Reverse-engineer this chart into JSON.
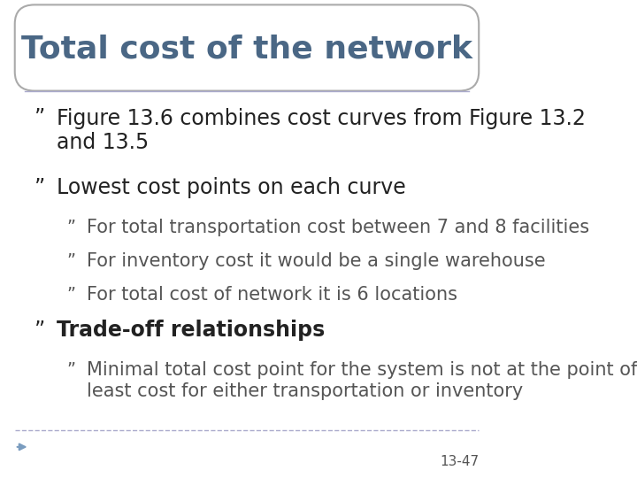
{
  "title": "Total cost of the network",
  "title_color": "#4a6785",
  "title_fontsize": 26,
  "bg_color": "#ffffff",
  "bullet_char": "”",
  "slide_number": "13-47",
  "items": [
    {
      "level": 1,
      "text": "Figure 13.6 combines cost curves from Figure 13.2\nand 13.5",
      "bold": false,
      "fontsize": 17
    },
    {
      "level": 1,
      "text": "Lowest cost points on each curve",
      "bold": false,
      "fontsize": 17
    },
    {
      "level": 2,
      "text": "For total transportation cost between 7 and 8 facilities",
      "bold": false,
      "fontsize": 15
    },
    {
      "level": 2,
      "text": "For inventory cost it would be a single warehouse",
      "bold": false,
      "fontsize": 15
    },
    {
      "level": 2,
      "text": "For total cost of network it is 6 locations",
      "bold": false,
      "fontsize": 15
    },
    {
      "level": 1,
      "text": "Trade-off relationships",
      "bold": true,
      "fontsize": 17
    },
    {
      "level": 2,
      "text": "Minimal total cost point for the system is not at the point of\nleast cost for either transportation or inventory",
      "bold": false,
      "fontsize": 15
    }
  ],
  "title_box_edge_color": "#aaaaaa",
  "separator_color": "#aaaacc",
  "arrow_color": "#7a9cbf",
  "l1_color": "#222222",
  "l2_color": "#555555"
}
